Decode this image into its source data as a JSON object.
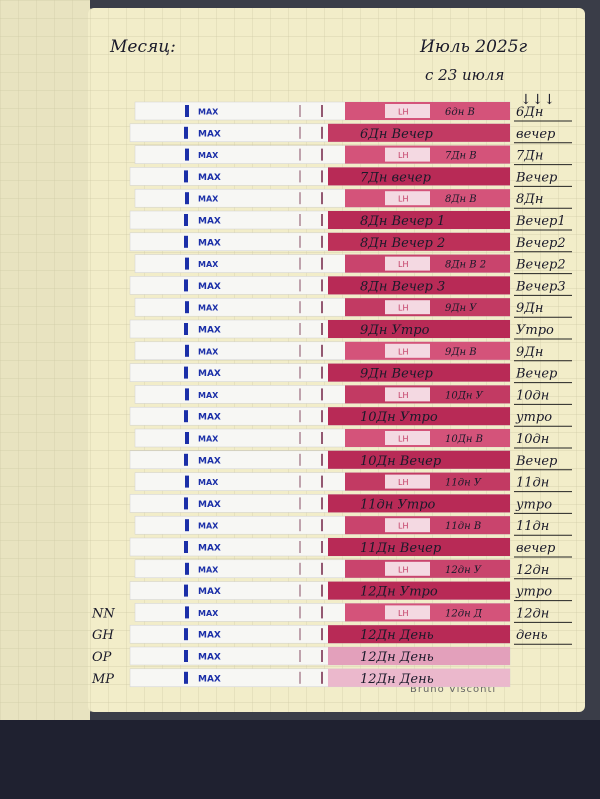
{
  "header": {
    "month_label": "Месяц:",
    "month_value": "Июль 2025г",
    "start": "с 23 июля",
    "arrows": "↓↓↓"
  },
  "print": {
    "max": "MAX",
    "lh": "LH"
  },
  "strips": [
    {
      "label": "6дн В",
      "side": "6Дн",
      "color": "#d4537a",
      "lh": true
    },
    {
      "label": "6Дн Вечер",
      "side": "вечер",
      "color": "#c23a63"
    },
    {
      "label": "7Дн В",
      "side": "7Дн",
      "color": "#d4537a",
      "lh": true
    },
    {
      "label": "7Дн вечер",
      "side": "Вечер",
      "color": "#b82a56"
    },
    {
      "label": "8Дн В",
      "side": "8Дн",
      "color": "#d4537a",
      "lh": true
    },
    {
      "label": "8Дн Вечер 1",
      "side": "Вечер1",
      "color": "#b82a56"
    },
    {
      "label": "8Дн Вечер 2",
      "side": "Вечер2",
      "color": "#bd3059"
    },
    {
      "label": "8Дн В 2",
      "side": "Вечер2",
      "color": "#c9446d",
      "lh": true
    },
    {
      "label": "8Дн Вечер 3",
      "side": "Вечер3",
      "color": "#b82a56"
    },
    {
      "label": "9Дн У",
      "side": "9Дн",
      "color": "#c23a63",
      "lh": true
    },
    {
      "label": "9Дн Утро",
      "side": "Утро",
      "color": "#b82a56"
    },
    {
      "label": "9Дн В",
      "side": "9Дн",
      "color": "#d4537a",
      "lh": true
    },
    {
      "label": "9Дн Вечер",
      "side": "Вечер",
      "color": "#b82a56"
    },
    {
      "label": "10Дн У",
      "side": "10дн",
      "color": "#c23a63",
      "lh": true
    },
    {
      "label": "10Дн Утро",
      "side": "утро",
      "color": "#b82a56"
    },
    {
      "label": "10Дн В",
      "side": "10дн",
      "color": "#d4537a",
      "lh": true
    },
    {
      "label": "10Дн Вечер",
      "side": "Вечер",
      "color": "#b82a56"
    },
    {
      "label": "11дн У",
      "side": "11дн",
      "color": "#c23a63",
      "lh": true
    },
    {
      "label": "11дн Утро",
      "side": "утро",
      "color": "#b82a56"
    },
    {
      "label": "11дн В",
      "side": "11дн",
      "color": "#c9446d",
      "lh": true
    },
    {
      "label": "11Дн Вечер",
      "side": "вечер",
      "color": "#b82a56"
    },
    {
      "label": "12дн У",
      "side": "12дн",
      "color": "#c9446d",
      "lh": true
    },
    {
      "label": "12Дн Утро",
      "side": "утро",
      "color": "#b82a56"
    },
    {
      "label": "12дн Д",
      "side": "12дн",
      "color": "#d4537a",
      "lh": true,
      "margin": "NN"
    },
    {
      "label": "12Дн День",
      "side": "день",
      "color": "#b82a56",
      "margin": "GH"
    },
    {
      "label": "12Дн День",
      "color": "#e3a0bb",
      "margin": "OP"
    },
    {
      "label": "12Дн День",
      "color": "#ebb8cc",
      "margin": "MP"
    }
  ],
  "footer": {
    "brand": "Bruno Visconti"
  }
}
